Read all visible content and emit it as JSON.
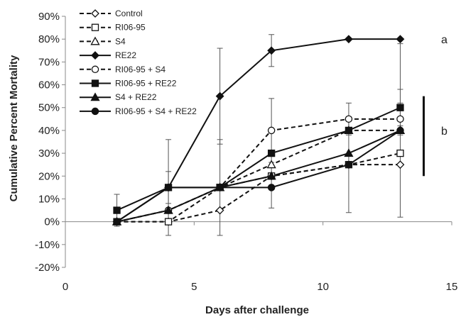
{
  "chart_data": {
    "type": "line",
    "xlabel": "Days after challenge",
    "ylabel": "Cumulative Percent Mortality",
    "xlim": [
      0,
      15
    ],
    "ylim": [
      -20,
      90
    ],
    "x_ticks": [
      0,
      5,
      10,
      15
    ],
    "y_ticks": [
      -20,
      -10,
      0,
      10,
      20,
      30,
      40,
      50,
      60,
      70,
      80,
      90
    ],
    "x_tick_labels": [
      "0",
      "5",
      "10",
      "15"
    ],
    "y_tick_labels": [
      "-20%",
      "-10%",
      "0%",
      "10%",
      "20%",
      "30%",
      "40%",
      "50%",
      "60%",
      "70%",
      "80%",
      "90%"
    ],
    "grid": false,
    "legend_position": "top-left",
    "x": [
      2,
      4,
      6,
      8,
      11,
      13
    ],
    "series": [
      {
        "name": "Control",
        "line": "dashed",
        "marker": "diamond-open",
        "values": [
          0,
          0,
          5,
          20,
          25,
          25
        ],
        "err": [
          0,
          0,
          0,
          0,
          0,
          0
        ]
      },
      {
        "name": "RI06-95",
        "line": "dashed",
        "marker": "square-open",
        "values": [
          0,
          0,
          15,
          20,
          25,
          30
        ],
        "err": [
          0,
          0,
          0,
          0,
          0,
          0
        ]
      },
      {
        "name": "S4",
        "line": "dashed",
        "marker": "triangle-open",
        "values": [
          0,
          5,
          15,
          25,
          40,
          40
        ],
        "err": [
          0,
          0,
          0,
          0,
          0,
          0
        ]
      },
      {
        "name": "RE22",
        "line": "solid",
        "marker": "diamond-filled",
        "values": [
          0,
          15,
          55,
          75,
          80,
          80
        ],
        "err": [
          0,
          0,
          21,
          7,
          0,
          0
        ]
      },
      {
        "name": "RI06-95 + S4",
        "line": "dashed",
        "marker": "circle-open",
        "values": [
          0,
          5,
          15,
          40,
          45,
          45
        ],
        "err": [
          0,
          0,
          0,
          14,
          7,
          7
        ]
      },
      {
        "name": "RI06-95 + RE22",
        "line": "solid",
        "marker": "square-filled",
        "values": [
          5,
          15,
          15,
          30,
          40,
          50
        ],
        "err": [
          7,
          7,
          21,
          0,
          0,
          8
        ]
      },
      {
        "name": "S4 + RE22",
        "line": "solid",
        "marker": "triangle-filled",
        "values": [
          0,
          5,
          15,
          20,
          30,
          40
        ],
        "err": [
          0,
          0,
          0,
          0,
          0,
          0
        ]
      },
      {
        "name": "RI06-95 + S4 + RE22",
        "line": "solid",
        "marker": "circle-filled",
        "values": [
          0,
          15,
          15,
          15,
          25,
          40
        ],
        "err": [
          0,
          21,
          0,
          9,
          21,
          38
        ]
      }
    ],
    "annotations": [
      {
        "text": "a",
        "x": 14.6,
        "y": 80
      },
      {
        "text": "b",
        "x": 14.6,
        "y": 40,
        "bracket": [
          20,
          55
        ]
      }
    ]
  }
}
